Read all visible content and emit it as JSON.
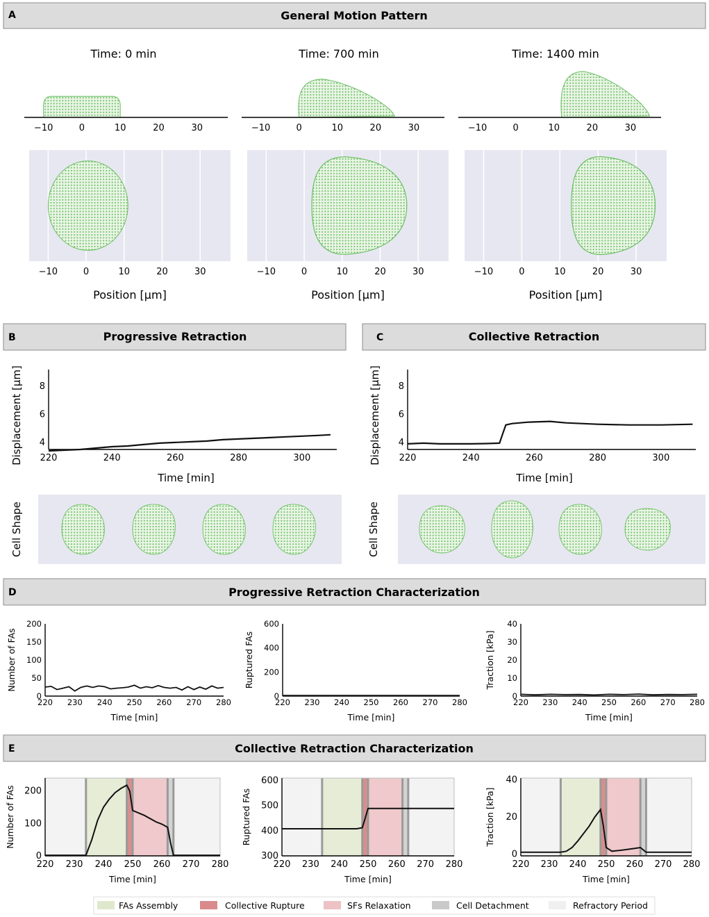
{
  "panel_a": {
    "letter": "A",
    "title": "General Motion Pattern",
    "snapshots": [
      {
        "time_label": "Time: 0 min",
        "position_label": "Position [μm]",
        "side_extent": [
          -10,
          10
        ],
        "side_height": 5.5,
        "top_extent": [
          -10,
          11
        ],
        "top_half_height": 11
      },
      {
        "time_label": "Time: 700 min",
        "position_label": "Position [μm]",
        "side_extent": [
          0,
          25
        ],
        "side_height": 10,
        "top_extent": [
          2,
          27
        ],
        "top_half_height": 12
      },
      {
        "time_label": "Time: 1400 min",
        "position_label": "Position [μm]",
        "side_extent": [
          12,
          35
        ],
        "side_height": 12,
        "top_extent": [
          13,
          35
        ],
        "top_half_height": 12
      }
    ],
    "x_ticks": [
      "−10",
      "0",
      "10",
      "20",
      "30"
    ],
    "x_tick_values": [
      -10,
      0,
      10,
      20,
      30
    ],
    "x_range": [
      -15,
      38
    ]
  },
  "panel_b": {
    "letter": "B",
    "title": "Progressive Retraction",
    "ylabel": "Displacement [μm]",
    "xlabel": "Time [min]",
    "shape_label": "Cell Shape"
  },
  "panel_c": {
    "letter": "C",
    "title": "Collective Retraction",
    "ylabel": "Displacement [μm]",
    "xlabel": "Time [min]",
    "shape_label": "Cell Shape"
  },
  "panel_d": {
    "letter": "D",
    "title": "Progressive Retraction Characterization"
  },
  "panel_e": {
    "letter": "E",
    "title": "Collective Retraction Characterization"
  },
  "legend": [
    {
      "label": "FAs Assembly",
      "color": "#dfe8cc"
    },
    {
      "label": "Collective Rupture",
      "color": "#d98b8b"
    },
    {
      "label": "SFs Relaxation",
      "color": "#eec2c4"
    },
    {
      "label": "Cell Detachment",
      "color": "#c9c9c9"
    },
    {
      "label": "Refractory Period",
      "color": "#f0f0f0"
    }
  ],
  "phases": [
    {
      "name": "refractory",
      "x0": 220,
      "x1": 234,
      "color": "#f3f3f3"
    },
    {
      "name": "assembly",
      "x0": 234,
      "x1": 248,
      "color": "#e6ecd6"
    },
    {
      "name": "rupture",
      "x0": 248,
      "x1": 250,
      "color": "#d88e8e"
    },
    {
      "name": "relaxation",
      "x0": 250,
      "x1": 262,
      "color": "#efc9cb"
    },
    {
      "name": "detachment",
      "x0": 262,
      "x1": 264,
      "color": "#d3d3d3"
    },
    {
      "name": "refractory",
      "x0": 264,
      "x1": 280,
      "color": "#f3f3f3"
    }
  ],
  "phase_lines": [
    234,
    248,
    250,
    262,
    264
  ],
  "chart_data": [
    {
      "id": "b_disp",
      "type": "line",
      "title": "Progressive Retraction",
      "xlabel": "Time [min]",
      "ylabel": "Displacement [μm]",
      "xlim": [
        220,
        311
      ],
      "ylim": [
        3.5,
        9.2
      ],
      "xticks": [
        220,
        240,
        260,
        280,
        300
      ],
      "yticks": [
        4,
        6,
        8
      ],
      "x": [
        220,
        225,
        230,
        235,
        240,
        245,
        250,
        255,
        260,
        265,
        270,
        275,
        280,
        285,
        290,
        295,
        300,
        305,
        309
      ],
      "y": [
        3.4,
        3.45,
        3.5,
        3.6,
        3.7,
        3.75,
        3.85,
        3.95,
        4.0,
        4.05,
        4.1,
        4.2,
        4.25,
        4.3,
        4.35,
        4.4,
        4.45,
        4.5,
        4.55
      ]
    },
    {
      "id": "c_disp",
      "type": "line",
      "title": "Collective Retraction",
      "xlabel": "Time [min]",
      "ylabel": "Displacement [μm]",
      "xlim": [
        220,
        311
      ],
      "ylim": [
        3.5,
        9.2
      ],
      "xticks": [
        220,
        240,
        260,
        280,
        300
      ],
      "yticks": [
        4,
        6,
        8
      ],
      "x": [
        220,
        225,
        230,
        235,
        240,
        245,
        249,
        250,
        251,
        253,
        258,
        265,
        270,
        280,
        290,
        300,
        310
      ],
      "y": [
        3.9,
        3.95,
        3.9,
        3.9,
        3.9,
        3.92,
        3.95,
        4.6,
        5.25,
        5.35,
        5.45,
        5.5,
        5.4,
        5.3,
        5.25,
        5.25,
        5.3
      ]
    },
    {
      "id": "d_fas",
      "type": "line",
      "xlabel": "Time [min]",
      "ylabel": "Number of FAs",
      "xlim": [
        220,
        280
      ],
      "ylim": [
        0,
        200
      ],
      "xticks": [
        220,
        230,
        240,
        250,
        260,
        270,
        280
      ],
      "yticks": [
        0,
        50,
        100,
        150,
        200
      ],
      "x": [
        220,
        222,
        224,
        226,
        228,
        230,
        232,
        234,
        236,
        238,
        240,
        242,
        244,
        246,
        248,
        250,
        252,
        254,
        256,
        258,
        260,
        262,
        264,
        266,
        268,
        270,
        272,
        274,
        276,
        278,
        280
      ],
      "y": [
        25,
        27,
        18,
        22,
        26,
        14,
        24,
        28,
        24,
        28,
        26,
        20,
        22,
        23,
        25,
        30,
        22,
        26,
        23,
        29,
        24,
        22,
        24,
        17,
        26,
        18,
        25,
        19,
        28,
        22,
        24
      ]
    },
    {
      "id": "d_rupt",
      "type": "line",
      "xlabel": "Time [min]",
      "ylabel": "Ruptured FAs",
      "xlim": [
        220,
        280
      ],
      "ylim": [
        0,
        600
      ],
      "xticks": [
        220,
        230,
        240,
        250,
        260,
        270,
        280
      ],
      "yticks": [
        0,
        200,
        400,
        600
      ],
      "x": [
        220,
        280
      ],
      "y": [
        5,
        5
      ]
    },
    {
      "id": "d_trac",
      "type": "line",
      "xlabel": "Time [min]",
      "ylabel": "Traction [kPa]",
      "xlim": [
        220,
        280
      ],
      "ylim": [
        0,
        40
      ],
      "xticks": [
        220,
        230,
        240,
        250,
        260,
        270,
        280
      ],
      "yticks": [
        0,
        10,
        20,
        30,
        40
      ],
      "x": [
        220,
        225,
        230,
        235,
        240,
        245,
        250,
        255,
        260,
        265,
        270,
        275,
        280
      ],
      "y": [
        1,
        0.7,
        1,
        0.8,
        0.9,
        0.6,
        1,
        0.8,
        1.1,
        0.7,
        0.9,
        0.8,
        1
      ]
    },
    {
      "id": "e_fas",
      "type": "line",
      "xlabel": "Time [min]",
      "ylabel": "Number of FAs",
      "xlim": [
        220,
        280
      ],
      "ylim": [
        0,
        240
      ],
      "xticks": [
        220,
        230,
        240,
        250,
        260,
        270,
        280
      ],
      "yticks": [
        0,
        100,
        200
      ],
      "x": [
        220,
        234,
        236,
        238,
        240,
        242,
        244,
        246,
        248,
        249,
        250,
        254,
        258,
        260,
        262,
        263,
        264,
        270,
        280
      ],
      "y": [
        2,
        2,
        50,
        110,
        150,
        175,
        195,
        208,
        218,
        200,
        140,
        125,
        105,
        98,
        88,
        40,
        2,
        2,
        2
      ]
    },
    {
      "id": "e_rupt",
      "type": "line",
      "xlabel": "Time [min]",
      "ylabel": "Ruptured FAs",
      "xlim": [
        220,
        280
      ],
      "ylim": [
        300,
        610
      ],
      "xticks": [
        220,
        230,
        240,
        250,
        260,
        270,
        280
      ],
      "yticks": [
        300,
        400,
        500,
        600
      ],
      "x": [
        220,
        234,
        246,
        248,
        249,
        250,
        260,
        270,
        280
      ],
      "y": [
        408,
        408,
        408,
        412,
        450,
        489,
        489,
        489,
        489
      ]
    },
    {
      "id": "e_trac",
      "type": "line",
      "xlabel": "Time [min]",
      "ylabel": "Traction [kPa]",
      "xlim": [
        220,
        280
      ],
      "ylim": [
        -1,
        41
      ],
      "xticks": [
        220,
        230,
        240,
        250,
        260,
        270,
        280
      ],
      "yticks": [
        0,
        20,
        40
      ],
      "x": [
        220,
        234,
        236,
        238,
        240,
        242,
        244,
        246,
        248,
        249,
        250,
        252,
        256,
        260,
        262,
        264,
        270,
        280
      ],
      "y": [
        1,
        1,
        1.5,
        3.5,
        7,
        11,
        15,
        20,
        24,
        15,
        3.5,
        1.5,
        2.2,
        3,
        3.5,
        1,
        1,
        1
      ]
    }
  ]
}
